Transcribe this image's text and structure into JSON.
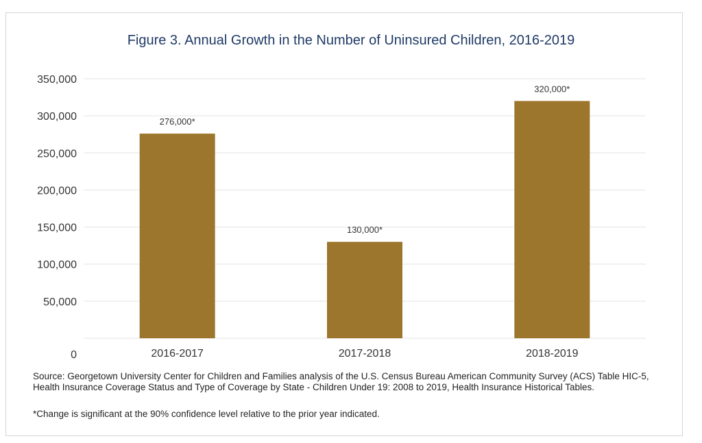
{
  "chart_data": {
    "type": "bar",
    "title": "Figure 3. Annual Growth in the Number of Uninsured Children, 2016-2019",
    "categories": [
      "2016-2017",
      "2017-2018",
      "2018-2019"
    ],
    "values": [
      276000,
      130000,
      320000
    ],
    "data_labels": [
      "276,000*",
      "130,000*",
      "320,000*"
    ],
    "ylim": [
      0,
      350000
    ],
    "yticks": [
      0,
      50000,
      100000,
      150000,
      200000,
      250000,
      300000,
      350000
    ],
    "ytick_labels": [
      "0",
      "50,000",
      "100,000",
      "150,000",
      "200,000",
      "250,000",
      "300,000",
      "350,000"
    ],
    "xlabel": "",
    "ylabel": "",
    "grid": true,
    "bar_color": "#9b762c",
    "grid_color": "#e3e3e3"
  },
  "notes": {
    "source": "Source: Georgetown University Center for Children and Families analysis of the U.S. Census Bureau American Community Survey (ACS) Table HIC-5, Health Insurance Coverage Status and Type of Coverage by State - Children Under 19: 2008 to 2019, Health Insurance Historical Tables.",
    "footnote": "*Change is significant at the 90% confidence level relative to the prior year indicated."
  },
  "colors": {
    "title": "#1f3a66"
  }
}
